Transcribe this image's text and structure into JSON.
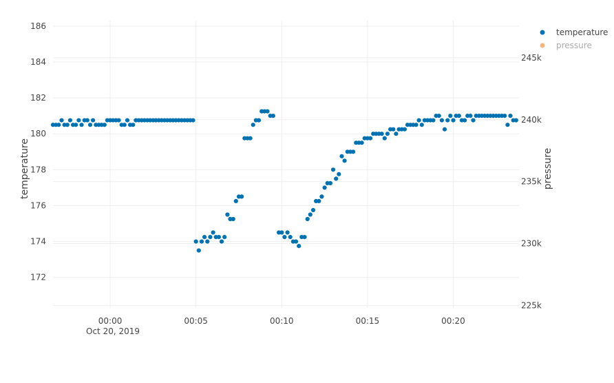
{
  "chart_data": {
    "type": "scatter",
    "x_axis": {
      "type": "date",
      "range": [
        "2019-10-19 23:56:40",
        "2019-10-20 00:23:50"
      ],
      "tick_values": [
        "2019-10-20 00:00:00",
        "2019-10-20 00:05:00",
        "2019-10-20 00:10:00",
        "2019-10-20 00:15:00",
        "2019-10-20 00:20:00"
      ],
      "tick_labels": [
        "00:00",
        "00:05",
        "00:10",
        "00:15",
        "00:20"
      ],
      "date_label": "Oct 20, 2019"
    },
    "y_axis": {
      "title": "temperature",
      "range": [
        170.3,
        186.3
      ],
      "ticks": [
        172,
        174,
        176,
        178,
        180,
        182,
        184,
        186
      ],
      "tick_labels": [
        "172",
        "174",
        "176",
        "178",
        "180",
        "182",
        "184",
        "186"
      ]
    },
    "y2_axis": {
      "title": "pressure",
      "range": [
        224800,
        248000
      ],
      "ticks": [
        225000,
        230000,
        235000,
        240000,
        245000
      ],
      "tick_labels": [
        "225k",
        "230k",
        "235k",
        "240k",
        "245k"
      ]
    },
    "grid": true,
    "legend_position": "top-right",
    "series": [
      {
        "name": "temperature",
        "color": "#0072b2",
        "axis": "y",
        "points": [
          [
            "2019-10-19 23:56:40",
            180.5
          ],
          [
            "2019-10-19 23:56:50",
            180.5
          ],
          [
            "2019-10-19 23:57:00",
            180.5
          ],
          [
            "2019-10-19 23:57:10",
            180.75
          ],
          [
            "2019-10-19 23:57:20",
            180.5
          ],
          [
            "2019-10-19 23:57:30",
            180.5
          ],
          [
            "2019-10-19 23:57:40",
            180.75
          ],
          [
            "2019-10-19 23:57:50",
            180.5
          ],
          [
            "2019-10-19 23:58:00",
            180.5
          ],
          [
            "2019-10-19 23:58:10",
            180.75
          ],
          [
            "2019-10-19 23:58:20",
            180.5
          ],
          [
            "2019-10-19 23:58:30",
            180.75
          ],
          [
            "2019-10-19 23:58:40",
            180.75
          ],
          [
            "2019-10-19 23:58:50",
            180.5
          ],
          [
            "2019-10-19 23:59:00",
            180.75
          ],
          [
            "2019-10-19 23:59:10",
            180.5
          ],
          [
            "2019-10-19 23:59:20",
            180.5
          ],
          [
            "2019-10-19 23:59:30",
            180.5
          ],
          [
            "2019-10-19 23:59:40",
            180.5
          ],
          [
            "2019-10-19 23:59:50",
            180.75
          ],
          [
            "2019-10-20 00:00:00",
            180.75
          ],
          [
            "2019-10-20 00:00:10",
            180.75
          ],
          [
            "2019-10-20 00:00:20",
            180.75
          ],
          [
            "2019-10-20 00:00:30",
            180.75
          ],
          [
            "2019-10-20 00:00:40",
            180.5
          ],
          [
            "2019-10-20 00:00:50",
            180.5
          ],
          [
            "2019-10-20 00:01:00",
            180.75
          ],
          [
            "2019-10-20 00:01:10",
            180.5
          ],
          [
            "2019-10-20 00:01:20",
            180.5
          ],
          [
            "2019-10-20 00:01:30",
            180.75
          ],
          [
            "2019-10-20 00:01:40",
            180.75
          ],
          [
            "2019-10-20 00:01:50",
            180.75
          ],
          [
            "2019-10-20 00:02:00",
            180.75
          ],
          [
            "2019-10-20 00:02:10",
            180.75
          ],
          [
            "2019-10-20 00:02:20",
            180.75
          ],
          [
            "2019-10-20 00:02:30",
            180.75
          ],
          [
            "2019-10-20 00:02:40",
            180.75
          ],
          [
            "2019-10-20 00:02:50",
            180.75
          ],
          [
            "2019-10-20 00:03:00",
            180.75
          ],
          [
            "2019-10-20 00:03:10",
            180.75
          ],
          [
            "2019-10-20 00:03:20",
            180.75
          ],
          [
            "2019-10-20 00:03:30",
            180.75
          ],
          [
            "2019-10-20 00:03:40",
            180.75
          ],
          [
            "2019-10-20 00:03:50",
            180.75
          ],
          [
            "2019-10-20 00:04:00",
            180.75
          ],
          [
            "2019-10-20 00:04:10",
            180.75
          ],
          [
            "2019-10-20 00:04:20",
            180.75
          ],
          [
            "2019-10-20 00:04:30",
            180.75
          ],
          [
            "2019-10-20 00:04:40",
            180.75
          ],
          [
            "2019-10-20 00:04:50",
            180.75
          ],
          [
            "2019-10-20 00:05:00",
            174.0
          ],
          [
            "2019-10-20 00:05:10",
            173.5
          ],
          [
            "2019-10-20 00:05:20",
            174.0
          ],
          [
            "2019-10-20 00:05:30",
            174.25
          ],
          [
            "2019-10-20 00:05:40",
            174.0
          ],
          [
            "2019-10-20 00:05:50",
            174.25
          ],
          [
            "2019-10-20 00:06:00",
            174.5
          ],
          [
            "2019-10-20 00:06:10",
            174.25
          ],
          [
            "2019-10-20 00:06:20",
            174.25
          ],
          [
            "2019-10-20 00:06:30",
            174.0
          ],
          [
            "2019-10-20 00:06:40",
            174.25
          ],
          [
            "2019-10-20 00:06:50",
            175.5
          ],
          [
            "2019-10-20 00:07:00",
            175.25
          ],
          [
            "2019-10-20 00:07:10",
            175.25
          ],
          [
            "2019-10-20 00:07:20",
            176.25
          ],
          [
            "2019-10-20 00:07:30",
            176.5
          ],
          [
            "2019-10-20 00:07:40",
            176.5
          ],
          [
            "2019-10-20 00:07:50",
            179.75
          ],
          [
            "2019-10-20 00:08:00",
            179.75
          ],
          [
            "2019-10-20 00:08:10",
            179.75
          ],
          [
            "2019-10-20 00:08:20",
            180.5
          ],
          [
            "2019-10-20 00:08:30",
            180.75
          ],
          [
            "2019-10-20 00:08:40",
            180.75
          ],
          [
            "2019-10-20 00:08:50",
            181.25
          ],
          [
            "2019-10-20 00:09:00",
            181.25
          ],
          [
            "2019-10-20 00:09:10",
            181.25
          ],
          [
            "2019-10-20 00:09:20",
            181.0
          ],
          [
            "2019-10-20 00:09:30",
            181.0
          ],
          [
            "2019-10-20 00:09:50",
            174.5
          ],
          [
            "2019-10-20 00:10:00",
            174.5
          ],
          [
            "2019-10-20 00:10:10",
            174.25
          ],
          [
            "2019-10-20 00:10:20",
            174.5
          ],
          [
            "2019-10-20 00:10:30",
            174.25
          ],
          [
            "2019-10-20 00:10:40",
            174.0
          ],
          [
            "2019-10-20 00:10:50",
            174.0
          ],
          [
            "2019-10-20 00:11:00",
            173.75
          ],
          [
            "2019-10-20 00:11:10",
            174.25
          ],
          [
            "2019-10-20 00:11:20",
            174.25
          ],
          [
            "2019-10-20 00:11:30",
            175.25
          ],
          [
            "2019-10-20 00:11:40",
            175.5
          ],
          [
            "2019-10-20 00:11:50",
            175.75
          ],
          [
            "2019-10-20 00:12:00",
            176.25
          ],
          [
            "2019-10-20 00:12:10",
            176.25
          ],
          [
            "2019-10-20 00:12:20",
            176.5
          ],
          [
            "2019-10-20 00:12:30",
            177.0
          ],
          [
            "2019-10-20 00:12:40",
            177.25
          ],
          [
            "2019-10-20 00:12:50",
            177.25
          ],
          [
            "2019-10-20 00:13:00",
            178.0
          ],
          [
            "2019-10-20 00:13:10",
            177.5
          ],
          [
            "2019-10-20 00:13:20",
            177.75
          ],
          [
            "2019-10-20 00:13:30",
            178.75
          ],
          [
            "2019-10-20 00:13:40",
            178.5
          ],
          [
            "2019-10-20 00:13:50",
            179.0
          ],
          [
            "2019-10-20 00:14:00",
            179.0
          ],
          [
            "2019-10-20 00:14:10",
            179.0
          ],
          [
            "2019-10-20 00:14:20",
            179.5
          ],
          [
            "2019-10-20 00:14:30",
            179.5
          ],
          [
            "2019-10-20 00:14:40",
            179.5
          ],
          [
            "2019-10-20 00:14:50",
            179.75
          ],
          [
            "2019-10-20 00:15:00",
            179.75
          ],
          [
            "2019-10-20 00:15:10",
            179.75
          ],
          [
            "2019-10-20 00:15:20",
            180.0
          ],
          [
            "2019-10-20 00:15:30",
            180.0
          ],
          [
            "2019-10-20 00:15:40",
            180.0
          ],
          [
            "2019-10-20 00:15:50",
            180.0
          ],
          [
            "2019-10-20 00:16:00",
            179.75
          ],
          [
            "2019-10-20 00:16:10",
            180.0
          ],
          [
            "2019-10-20 00:16:20",
            180.25
          ],
          [
            "2019-10-20 00:16:30",
            180.25
          ],
          [
            "2019-10-20 00:16:40",
            180.0
          ],
          [
            "2019-10-20 00:16:50",
            180.25
          ],
          [
            "2019-10-20 00:17:00",
            180.25
          ],
          [
            "2019-10-20 00:17:10",
            180.25
          ],
          [
            "2019-10-20 00:17:20",
            180.5
          ],
          [
            "2019-10-20 00:17:30",
            180.5
          ],
          [
            "2019-10-20 00:17:40",
            180.5
          ],
          [
            "2019-10-20 00:17:50",
            180.5
          ],
          [
            "2019-10-20 00:18:00",
            180.75
          ],
          [
            "2019-10-20 00:18:10",
            180.5
          ],
          [
            "2019-10-20 00:18:20",
            180.75
          ],
          [
            "2019-10-20 00:18:30",
            180.75
          ],
          [
            "2019-10-20 00:18:40",
            180.75
          ],
          [
            "2019-10-20 00:18:50",
            180.75
          ],
          [
            "2019-10-20 00:19:00",
            181.0
          ],
          [
            "2019-10-20 00:19:10",
            181.0
          ],
          [
            "2019-10-20 00:19:20",
            180.75
          ],
          [
            "2019-10-20 00:19:30",
            180.25
          ],
          [
            "2019-10-20 00:19:40",
            180.75
          ],
          [
            "2019-10-20 00:19:50",
            181.0
          ],
          [
            "2019-10-20 00:20:00",
            180.75
          ],
          [
            "2019-10-20 00:20:10",
            181.0
          ],
          [
            "2019-10-20 00:20:20",
            181.0
          ],
          [
            "2019-10-20 00:20:30",
            180.75
          ],
          [
            "2019-10-20 00:20:40",
            180.75
          ],
          [
            "2019-10-20 00:20:50",
            181.0
          ],
          [
            "2019-10-20 00:21:00",
            181.0
          ],
          [
            "2019-10-20 00:21:10",
            180.75
          ],
          [
            "2019-10-20 00:21:20",
            181.0
          ],
          [
            "2019-10-20 00:21:30",
            181.0
          ],
          [
            "2019-10-20 00:21:40",
            181.0
          ],
          [
            "2019-10-20 00:21:50",
            181.0
          ],
          [
            "2019-10-20 00:22:00",
            181.0
          ],
          [
            "2019-10-20 00:22:10",
            181.0
          ],
          [
            "2019-10-20 00:22:20",
            181.0
          ],
          [
            "2019-10-20 00:22:30",
            181.0
          ],
          [
            "2019-10-20 00:22:40",
            181.0
          ],
          [
            "2019-10-20 00:22:50",
            181.0
          ],
          [
            "2019-10-20 00:23:00",
            181.0
          ],
          [
            "2019-10-20 00:23:10",
            180.5
          ],
          [
            "2019-10-20 00:23:20",
            181.0
          ],
          [
            "2019-10-20 00:23:30",
            180.75
          ],
          [
            "2019-10-20 00:23:40",
            180.75
          ]
        ]
      },
      {
        "name": "pressure",
        "color": "#f4b67a",
        "axis": "y2",
        "points": []
      }
    ]
  }
}
